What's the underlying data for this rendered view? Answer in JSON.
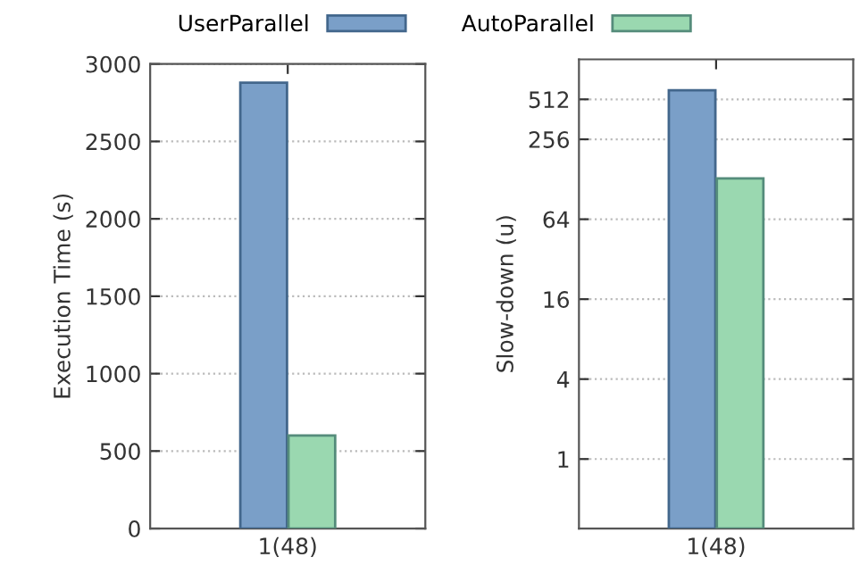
{
  "chart_data": [
    {
      "type": "bar",
      "ylabel": "Execution Time (s)",
      "categories": [
        "1(48)"
      ],
      "legend": "top",
      "grid": "y",
      "series": [
        {
          "name": "UserParallel",
          "color": "#7a9fc8",
          "values": [
            2880
          ]
        },
        {
          "name": "AutoParallel",
          "color": "#9ad8b0",
          "values": [
            600
          ]
        }
      ],
      "ylim": [
        0,
        3000
      ],
      "yticks": [
        0,
        500,
        1000,
        1500,
        2000,
        2500,
        3000
      ]
    },
    {
      "type": "bar",
      "ylabel": "Slow-down (u)",
      "categories": [
        "1(48)"
      ],
      "log": "y",
      "grid": "y",
      "series": [
        {
          "color": "#7a9fc8",
          "values": [
            600
          ]
        },
        {
          "color": "#9ad8b0",
          "values": [
            130
          ]
        }
      ],
      "ylim": [
        0.3,
        1024
      ],
      "yticks": [
        1,
        4,
        16,
        64,
        256,
        512
      ]
    }
  ]
}
